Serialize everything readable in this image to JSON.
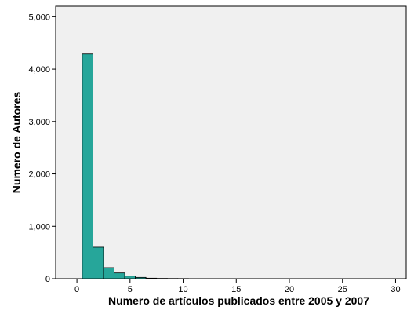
{
  "chart_data": {
    "type": "bar",
    "title": "",
    "xlabel": "Numero de artículos publicados entre 2005 y 2007",
    "ylabel": "Numero de Autores",
    "xlim": [
      -2,
      31
    ],
    "ylim": [
      0,
      5200
    ],
    "x_ticks": [
      0,
      5,
      10,
      15,
      20,
      25,
      30
    ],
    "x_tick_labels": [
      "0",
      "5",
      "10",
      "15",
      "20",
      "25",
      "30"
    ],
    "y_ticks": [
      0,
      1000,
      2000,
      3000,
      4000,
      5000
    ],
    "y_tick_labels": [
      "0",
      "1,000",
      "2,000",
      "3,000",
      "4,000",
      "5,000"
    ],
    "bin_width": 1,
    "bins": [
      {
        "x0": 0.5,
        "x1": 1.5,
        "value": 4290
      },
      {
        "x0": 1.5,
        "x1": 2.5,
        "value": 600
      },
      {
        "x0": 2.5,
        "x1": 3.5,
        "value": 210
      },
      {
        "x0": 3.5,
        "x1": 4.5,
        "value": 110
      },
      {
        "x0": 4.5,
        "x1": 5.5,
        "value": 50
      },
      {
        "x0": 5.5,
        "x1": 6.5,
        "value": 25
      },
      {
        "x0": 6.5,
        "x1": 7.5,
        "value": 10
      },
      {
        "x0": 7.5,
        "x1": 8.5,
        "value": 6
      },
      {
        "x0": 8.5,
        "x1": 9.5,
        "value": 4
      },
      {
        "x0": 9.5,
        "x1": 10.5,
        "value": 3
      }
    ],
    "grid": false,
    "colors": {
      "bar_fill": "#26a69a",
      "bar_stroke": "#000000",
      "plot_background": "#f0f0f0"
    }
  }
}
